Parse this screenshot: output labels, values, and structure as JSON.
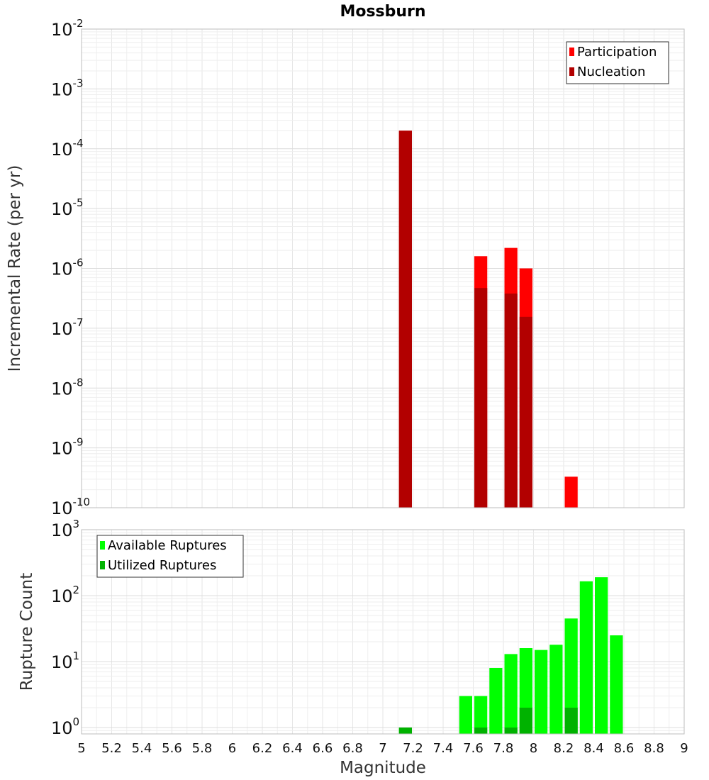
{
  "chart_data": [
    {
      "type": "bar",
      "title": "Mossburn",
      "xlabel": "",
      "ylabel": "Incremental Rate (per yr)",
      "yscale": "log",
      "ylim": [
        1e-10,
        0.01
      ],
      "xlim": [
        5,
        9
      ],
      "yticks": [
        {
          "base": "10",
          "exp": "-2",
          "value": 0.01
        },
        {
          "base": "10",
          "exp": "-3",
          "value": 0.001
        },
        {
          "base": "10",
          "exp": "-4",
          "value": 0.0001
        },
        {
          "base": "10",
          "exp": "-5",
          "value": 1e-05
        },
        {
          "base": "10",
          "exp": "-6",
          "value": 1e-06
        },
        {
          "base": "10",
          "exp": "-7",
          "value": 1e-07
        },
        {
          "base": "10",
          "exp": "-8",
          "value": 1e-08
        },
        {
          "base": "10",
          "exp": "-9",
          "value": 1e-09
        },
        {
          "base": "10",
          "exp": "-10",
          "value": 1e-10
        }
      ],
      "bin_width": 0.1,
      "legend_position": "top-right",
      "series": [
        {
          "name": "Participation",
          "color": "#ff0000",
          "points": [
            {
              "x": 7.15,
              "y": 0.0002
            },
            {
              "x": 7.65,
              "y": 1.6e-06
            },
            {
              "x": 7.85,
              "y": 2.2e-06
            },
            {
              "x": 7.95,
              "y": 1e-06
            },
            {
              "x": 8.25,
              "y": 3.3e-10
            }
          ]
        },
        {
          "name": "Nucleation",
          "color": "#b20000",
          "points": [
            {
              "x": 7.15,
              "y": 0.0002
            },
            {
              "x": 7.65,
              "y": 4.7e-07
            },
            {
              "x": 7.85,
              "y": 3.8e-07
            },
            {
              "x": 7.95,
              "y": 1.55e-07
            }
          ]
        }
      ]
    },
    {
      "type": "bar",
      "title": "",
      "xlabel": "Magnitude",
      "ylabel": "Rupture Count",
      "yscale": "log",
      "ylim": [
        0.8,
        1000
      ],
      "xlim": [
        5,
        9
      ],
      "yticks": [
        {
          "base": "10",
          "exp": "3",
          "value": 1000
        },
        {
          "base": "10",
          "exp": "2",
          "value": 100
        },
        {
          "base": "10",
          "exp": "1",
          "value": 10
        },
        {
          "base": "10",
          "exp": "0",
          "value": 1
        }
      ],
      "xticks": [
        "5",
        "5.2",
        "5.4",
        "5.6",
        "5.8",
        "6",
        "6.2",
        "6.4",
        "6.6",
        "6.8",
        "7",
        "7.2",
        "7.4",
        "7.6",
        "7.8",
        "8",
        "8.2",
        "8.4",
        "8.6",
        "8.8",
        "9"
      ],
      "bin_width": 0.1,
      "legend_position": "top-left",
      "series": [
        {
          "name": "Available Ruptures",
          "color": "#00ff00",
          "points": [
            {
              "x": 7.15,
              "y": 1
            },
            {
              "x": 7.55,
              "y": 3
            },
            {
              "x": 7.65,
              "y": 3
            },
            {
              "x": 7.75,
              "y": 8
            },
            {
              "x": 7.85,
              "y": 13
            },
            {
              "x": 7.95,
              "y": 16
            },
            {
              "x": 8.05,
              "y": 15
            },
            {
              "x": 8.15,
              "y": 18
            },
            {
              "x": 8.25,
              "y": 45
            },
            {
              "x": 8.35,
              "y": 165
            },
            {
              "x": 8.45,
              "y": 190
            },
            {
              "x": 8.55,
              "y": 25
            }
          ]
        },
        {
          "name": "Utilized Ruptures",
          "color": "#00b200",
          "points": [
            {
              "x": 7.15,
              "y": 1
            },
            {
              "x": 7.65,
              "y": 1
            },
            {
              "x": 7.85,
              "y": 1
            },
            {
              "x": 7.95,
              "y": 2
            },
            {
              "x": 8.25,
              "y": 2
            }
          ]
        }
      ]
    }
  ]
}
